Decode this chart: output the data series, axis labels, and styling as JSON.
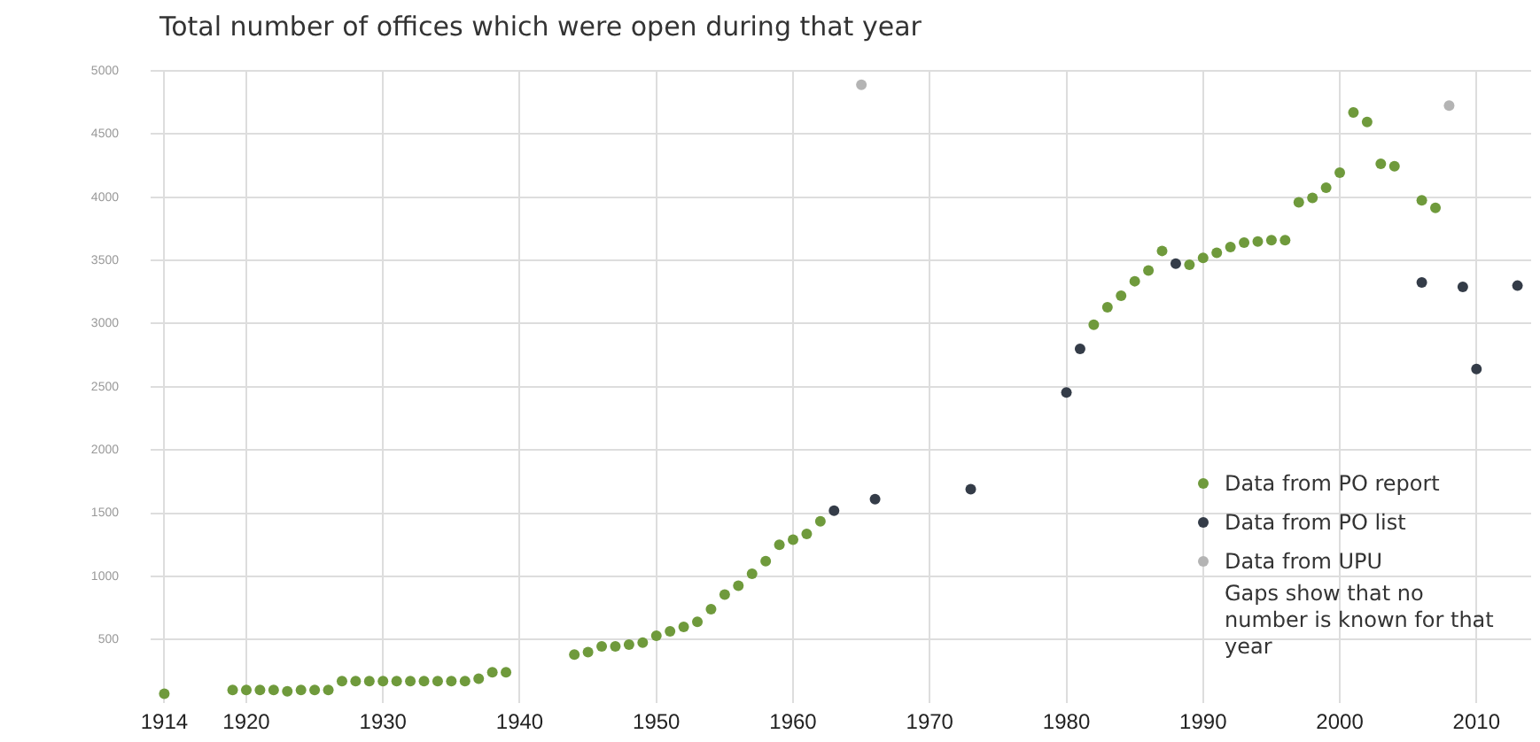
{
  "chart_data": {
    "type": "scatter",
    "title": "Total number of offices which were open during that year",
    "xlim": [
      1913,
      2014
    ],
    "xticks": [
      1914,
      1920,
      1930,
      1940,
      1950,
      1960,
      1970,
      1980,
      1990,
      2000,
      2010
    ],
    "ylim": [
      0,
      5000
    ],
    "yticks": [
      500,
      1000,
      1500,
      2000,
      2500,
      3000,
      3500,
      4000,
      4500,
      5000
    ],
    "grid": true,
    "legend": "bottom right",
    "marker": "circle",
    "series": [
      {
        "name": "Data from PO report",
        "color": "#6f9a3c",
        "x": [
          1914,
          1919,
          1920,
          1921,
          1922,
          1923,
          1924,
          1925,
          1926,
          1927,
          1928,
          1929,
          1930,
          1931,
          1932,
          1933,
          1934,
          1935,
          1936,
          1937,
          1938,
          1939,
          1944,
          1945,
          1946,
          1947,
          1948,
          1949,
          1950,
          1951,
          1952,
          1953,
          1954,
          1955,
          1956,
          1957,
          1958,
          1959,
          1960,
          1961,
          1962,
          1982,
          1983,
          1984,
          1985,
          1986,
          1987,
          1989,
          1990,
          1991,
          1992,
          1993,
          1994,
          1995,
          1996,
          1997,
          1998,
          1999,
          2000,
          2001,
          2002,
          2003,
          2004,
          2006,
          2007
        ],
        "values": [
          70,
          100,
          100,
          100,
          100,
          90,
          100,
          100,
          100,
          170,
          170,
          170,
          170,
          170,
          170,
          170,
          170,
          170,
          170,
          190,
          240,
          240,
          380,
          400,
          445,
          445,
          460,
          475,
          530,
          565,
          600,
          640,
          740,
          855,
          925,
          1020,
          1120,
          1250,
          1290,
          1335,
          1435,
          2990,
          3130,
          3220,
          3335,
          3420,
          3575,
          3465,
          3520,
          3560,
          3605,
          3640,
          3650,
          3660,
          3660,
          3960,
          3995,
          4075,
          4195,
          4670,
          4595,
          4265,
          4245,
          3975,
          3915
        ]
      },
      {
        "name": "Data from PO list",
        "color": "#343c48",
        "x": [
          1963,
          1966,
          1973,
          1980,
          1981,
          1988,
          2006,
          2009,
          2010,
          2013
        ],
        "values": [
          1520,
          1610,
          1690,
          2455,
          2800,
          3475,
          3325,
          3290,
          2640,
          3300
        ]
      },
      {
        "name": "Data from UPU",
        "color": "#b4b4b4",
        "x": [
          1965,
          2008
        ],
        "values": [
          4890,
          4725
        ]
      }
    ],
    "annotations": [
      "Gaps show that no number is known for that year"
    ]
  }
}
